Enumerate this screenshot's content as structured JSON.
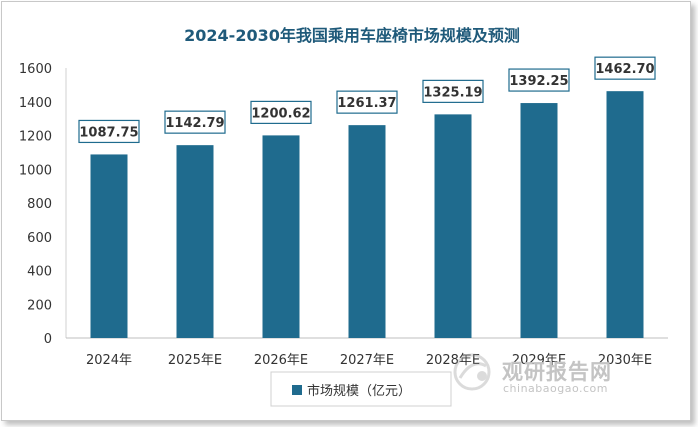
{
  "chart_data": {
    "type": "bar",
    "title": "2024-2030年我国乘用车座椅市场规模及预测",
    "categories": [
      "2024年",
      "2025年E",
      "2026年E",
      "2027年E",
      "2028年E",
      "2029年E",
      "2030年E"
    ],
    "series": [
      {
        "name": "市场规模（亿元）",
        "values": [
          1087.75,
          1142.79,
          1200.62,
          1261.37,
          1325.19,
          1392.25,
          1462.7
        ]
      }
    ],
    "data_labels": [
      "1087.75",
      "1142.79",
      "1200.62",
      "1261.37",
      "1325.19",
      "1392.25",
      "1462.70"
    ],
    "y_ticks": [
      "0",
      "200",
      "400",
      "600",
      "800",
      "1000",
      "1200",
      "1400",
      "1600"
    ],
    "ylim": [
      0,
      1600
    ],
    "xlabel": "",
    "ylabel": "",
    "grid": false,
    "legend_position": "bottom",
    "colors": {
      "bar": "#1f6b8e",
      "title": "#1f5a7a",
      "label_border": "#1f6b8e"
    }
  },
  "watermark": {
    "text": "观研报告网",
    "url": "chinabaogao.com"
  }
}
